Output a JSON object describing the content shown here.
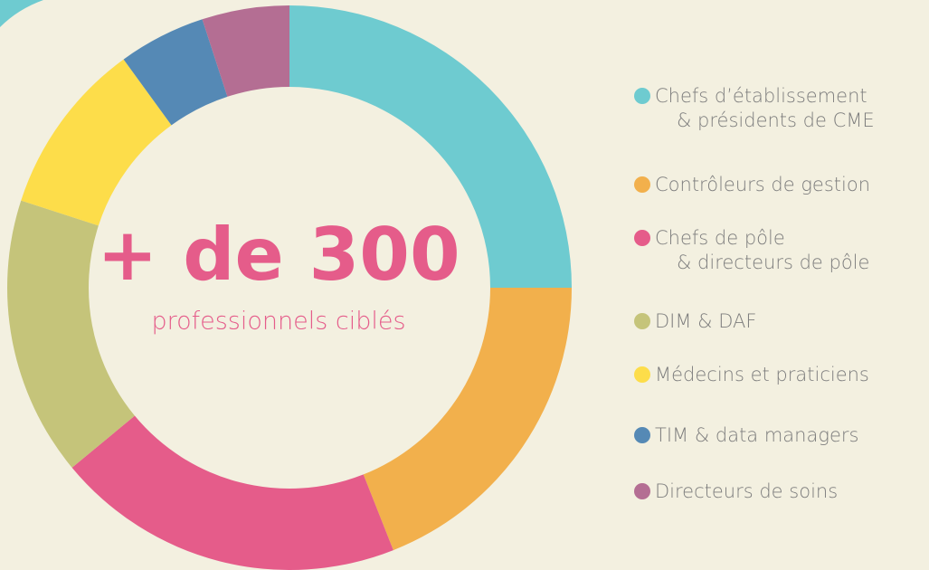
{
  "chart_data": {
    "type": "donut",
    "center_title": "+ de 300",
    "center_subtitle": "professionnels ciblés",
    "categories": [
      [
        "Chefs d’établissement",
        "& présidents de CME"
      ],
      [
        "Contrôleurs de gestion"
      ],
      [
        "Chefs de pôle",
        "& directeurs de pôle"
      ],
      [
        "DIM & DAF"
      ],
      [
        "Médecins et praticiens"
      ],
      [
        "TIM & data managers"
      ],
      [
        "Directeurs de soins"
      ]
    ],
    "values": [
      25,
      19,
      20,
      16,
      10,
      5,
      5
    ],
    "colors": [
      "#6ecbd0",
      "#f2b04c",
      "#e55c8a",
      "#c5c47a",
      "#fddd4a",
      "#5589b5",
      "#b46e93"
    ]
  }
}
